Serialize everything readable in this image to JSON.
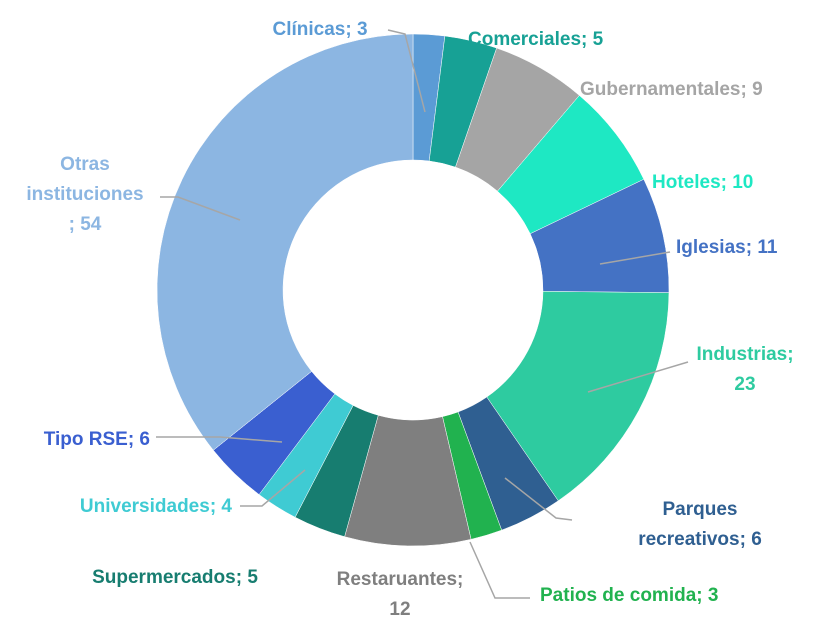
{
  "chart_data": {
    "type": "donut",
    "labels": [
      "Clínicas; 3",
      "Comerciales; 5",
      "Gubernamentales; 9",
      "Hoteles; 10",
      "Iglesias; 11",
      "Industrias;\n23",
      "Parques\nrecreativos; 6",
      "Patios de comida; 3",
      "Restaruantes;\n12",
      "Supermercados; 5",
      "Universidades; 4",
      "Tipo RSE; 6",
      "Otras\ninstituciones\n; 54"
    ],
    "values": [
      3,
      5,
      9,
      10,
      11,
      23,
      6,
      3,
      12,
      5,
      4,
      6,
      54
    ],
    "colors": [
      "#5b9bd5",
      "#17a195",
      "#a5a5a5",
      "#1ee8c3",
      "#4472c4",
      "#2ecba0",
      "#2f5f91",
      "#21b24f",
      "#7f7f7f",
      "#177d70",
      "#3fcbd3",
      "#3a5fd0",
      "#8cb6e2"
    ]
  }
}
